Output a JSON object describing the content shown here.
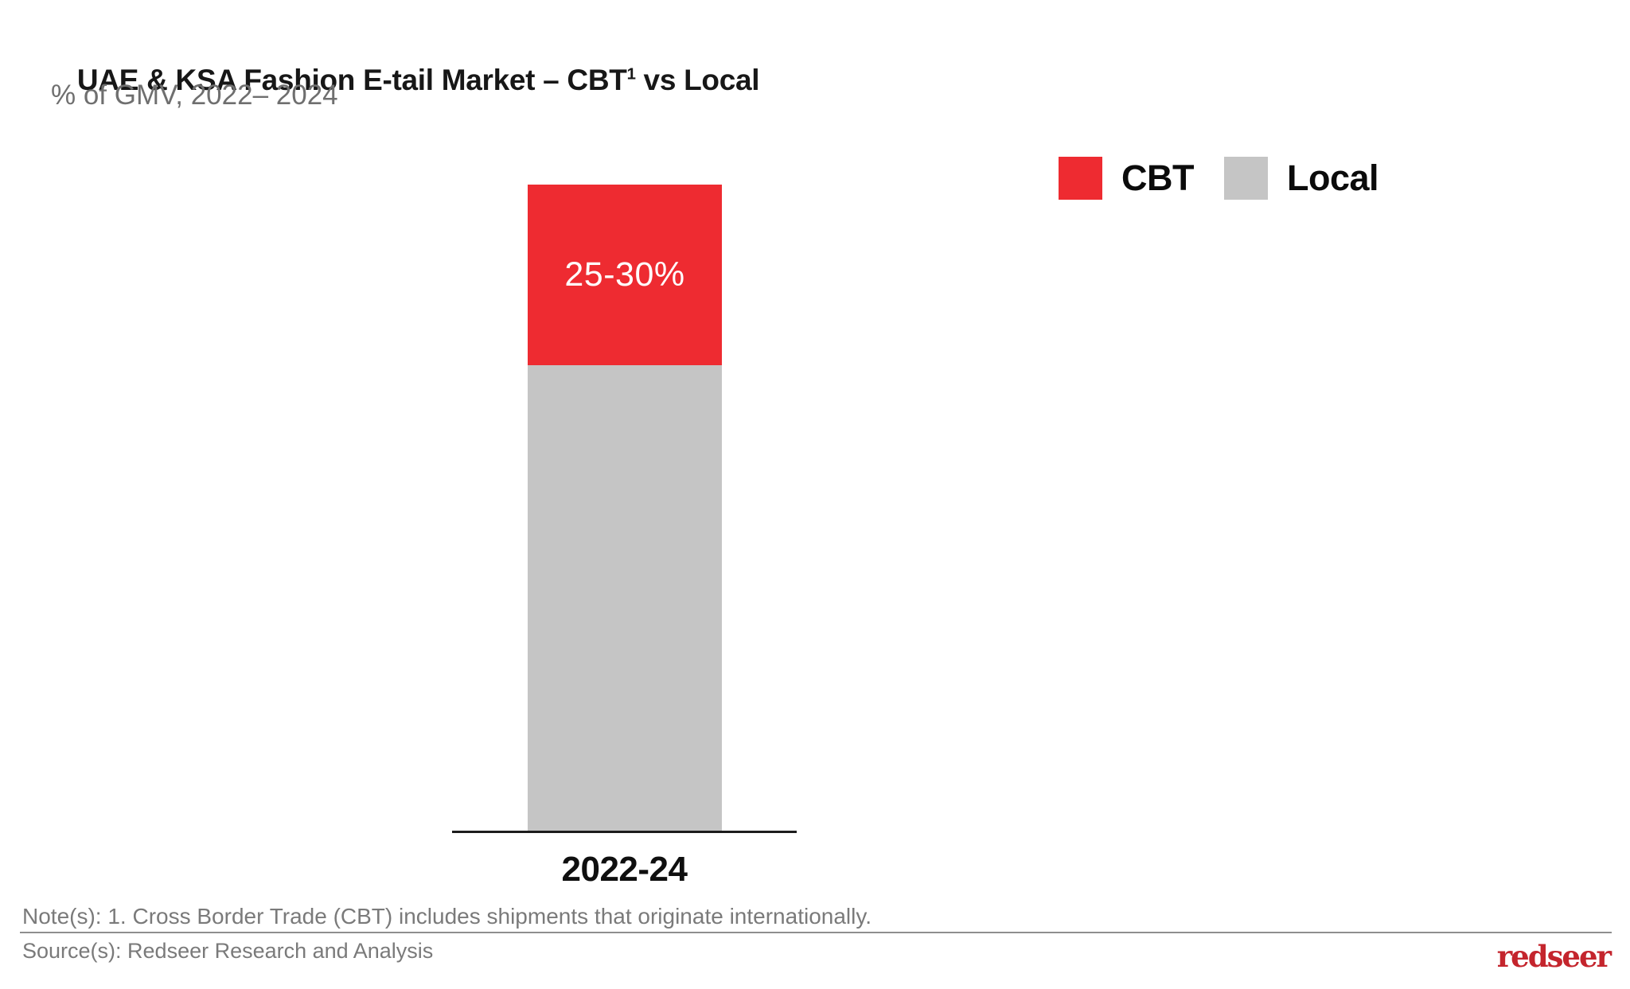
{
  "header": {
    "title_prefix": "UAE & KSA Fashion E-tail Market – CBT",
    "title_superscript": "1",
    "title_suffix": " vs Local",
    "subtitle": "% of GMV, 2022– 2024"
  },
  "legend": {
    "items": [
      {
        "label": "CBT",
        "color": "#ee2b31"
      },
      {
        "label": "Local",
        "color": "#c5c5c5"
      }
    ]
  },
  "chart_data": {
    "type": "bar",
    "stacked": true,
    "title": "UAE & KSA Fashion E-tail Market – CBT vs Local",
    "subtitle": "% of GMV, 2022– 2024",
    "categories": [
      "2022-24"
    ],
    "series": [
      {
        "name": "CBT",
        "color": "#ee2b31",
        "values": [
          28
        ],
        "value_label": "25-30%",
        "data_labels": [
          "25-30%"
        ]
      },
      {
        "name": "Local",
        "color": "#c5c5c5",
        "values": [
          72
        ],
        "value_label": "",
        "data_labels": [
          ""
        ]
      }
    ],
    "xlabel": "",
    "ylabel": "% of GMV",
    "ylim": [
      0,
      100
    ],
    "grid": false,
    "y_axis_visible": false,
    "legend_position": "top-right"
  },
  "footer": {
    "note": "Note(s): 1. Cross Border Trade (CBT) includes shipments that originate internationally.",
    "source": "Source(s): Redseer Research and Analysis",
    "logo_text": "redseer",
    "logo_color": "#c4252d"
  }
}
